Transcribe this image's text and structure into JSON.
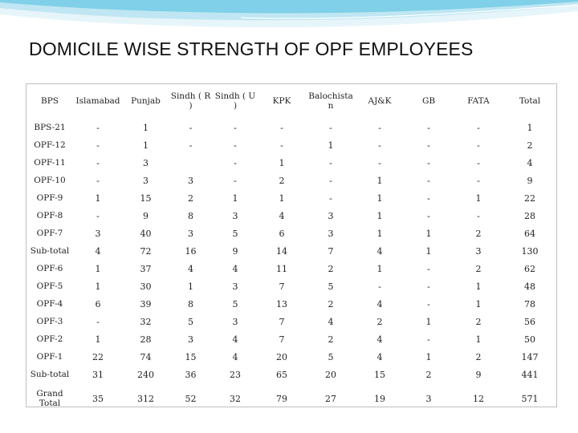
{
  "slide": {
    "title": "DOMICILE WISE STRENGTH OF OPF EMPLOYEES",
    "accent_colors": [
      "#7fd0e8",
      "#bfe6f2",
      "#e6f5fa"
    ]
  },
  "table": {
    "headers": [
      "BPS",
      "Islamabad",
      "Punjab",
      "Sindh ( R )",
      "Sindh ( U )",
      "KPK",
      "Balochistan",
      "AJ&K",
      "GB",
      "FATA",
      "Total"
    ],
    "rows": [
      [
        "BPS-21",
        "-",
        "1",
        "-",
        "-",
        "-",
        "-",
        "-",
        "-",
        "-",
        "1"
      ],
      [
        "OPF-12",
        "-",
        "1",
        "-",
        "-",
        "-",
        "1",
        "-",
        "-",
        "-",
        "2"
      ],
      [
        "OPF-11",
        "-",
        "3",
        "",
        "-",
        "1",
        "-",
        "-",
        "-",
        "-",
        "4"
      ],
      [
        "OPF-10",
        "-",
        "3",
        "3",
        "-",
        "2",
        "-",
        "1",
        "-",
        "-",
        "9"
      ],
      [
        "OPF-9",
        "1",
        "15",
        "2",
        "1",
        "1",
        "-",
        "1",
        "-",
        "1",
        "22"
      ],
      [
        "OPF-8",
        "-",
        "9",
        "8",
        "3",
        "4",
        "3",
        "1",
        "-",
        "-",
        "28"
      ],
      [
        "OPF-7",
        "3",
        "40",
        "3",
        "5",
        "6",
        "3",
        "1",
        "1",
        "2",
        "64"
      ],
      [
        "Sub-total",
        "4",
        "72",
        "16",
        "9",
        "14",
        "7",
        "4",
        "1",
        "3",
        "130"
      ],
      [
        "OPF-6",
        "1",
        "37",
        "4",
        "4",
        "11",
        "2",
        "1",
        "-",
        "2",
        "62"
      ],
      [
        "OPF-5",
        "1",
        "30",
        "1",
        "3",
        "7",
        "5",
        "-",
        "-",
        "1",
        "48"
      ],
      [
        "OPF-4",
        "6",
        "39",
        "8",
        "5",
        "13",
        "2",
        "4",
        "-",
        "1",
        "78"
      ],
      [
        "OPF-3",
        "-",
        "32",
        "5",
        "3",
        "7",
        "4",
        "2",
        "1",
        "2",
        "56"
      ],
      [
        "OPF-2",
        "1",
        "28",
        "3",
        "4",
        "7",
        "2",
        "4",
        "-",
        "1",
        "50"
      ],
      [
        "OPF-1",
        "22",
        "74",
        "15",
        "4",
        "20",
        "5",
        "4",
        "1",
        "2",
        "147"
      ],
      [
        "Sub-total",
        "31",
        "240",
        "36",
        "23",
        "65",
        "20",
        "15",
        "2",
        "9",
        "441"
      ],
      [
        "Grand Total",
        "35",
        "312",
        "52",
        "32",
        "79",
        "27",
        "19",
        "3",
        "12",
        "571"
      ]
    ]
  }
}
